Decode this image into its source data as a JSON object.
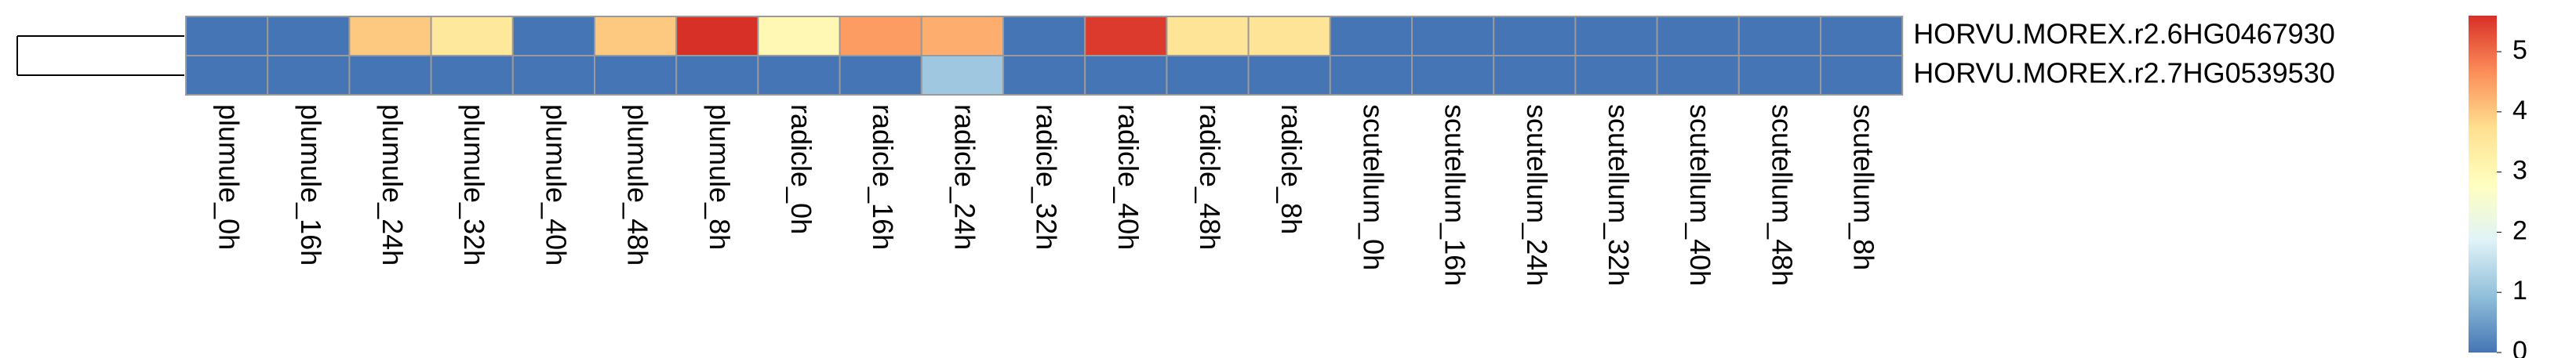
{
  "chart_data": {
    "type": "heatmap",
    "rows": [
      "HORVU.MOREX.r2.6HG0467930",
      "HORVU.MOREX.r2.7HG0539530"
    ],
    "columns": [
      "plumule_0h",
      "plumule_16h",
      "plumule_24h",
      "plumule_32h",
      "plumule_40h",
      "plumule_48h",
      "plumule_8h",
      "radicle_0h",
      "radicle_16h",
      "radicle_24h",
      "radicle_32h",
      "radicle_40h",
      "radicle_48h",
      "radicle_8h",
      "scutellum_0h",
      "scutellum_16h",
      "scutellum_24h",
      "scutellum_32h",
      "scutellum_40h",
      "scutellum_48h",
      "scutellum_8h"
    ],
    "values": [
      [
        0,
        0,
        4.0,
        3.5,
        0,
        4.0,
        5.6,
        3.0,
        4.5,
        4.3,
        0,
        5.5,
        3.6,
        3.6,
        0,
        0,
        0,
        0,
        0,
        0,
        0
      ],
      [
        0,
        0,
        0,
        0,
        0,
        0,
        0,
        0,
        0,
        1.1,
        0,
        0,
        0,
        0,
        0,
        0,
        0,
        0,
        0,
        0,
        0
      ]
    ],
    "colors": [
      "#4575B4",
      "#91BFDB",
      "#E0F3F8",
      "#FFFFBF",
      "#FEE090",
      "#FC8D59",
      "#D73027"
    ],
    "zlim": [
      0,
      5.6
    ],
    "zticks": [
      0,
      1,
      2,
      3,
      4,
      5
    ]
  }
}
